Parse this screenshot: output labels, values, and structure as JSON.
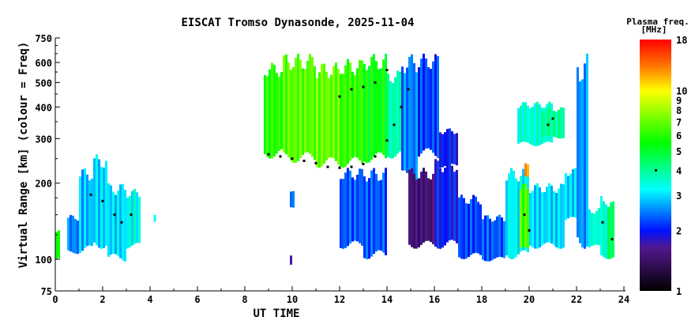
{
  "chart_data": {
    "type": "heatmap",
    "title": "EISCAT Tromso Dynasonde, 2025-11-04",
    "xlabel": "UT TIME",
    "ylabel": "Virtual Range [km] (colour = Freq)",
    "xlim": [
      0,
      24
    ],
    "ylim": [
      75,
      750
    ],
    "yscale": "log",
    "x_ticks": [
      "0",
      "2",
      "4",
      "6",
      "8",
      "10",
      "12",
      "14",
      "16",
      "18",
      "20",
      "22",
      "24"
    ],
    "y_ticks": [
      75,
      100,
      200,
      300,
      400,
      500,
      600,
      750
    ],
    "y_tick_labels": [
      "75",
      "100",
      "200",
      "300",
      "400",
      "500",
      "600",
      "750"
    ],
    "y_minor_ticks": [
      125,
      150,
      175,
      250,
      350,
      450,
      550,
      650,
      700
    ],
    "colorbar": {
      "label_line1": "Plasma freq.",
      "label_line2": "[MHz]",
      "range": [
        1,
        18
      ],
      "scale": "log",
      "ticks": [
        1,
        2,
        3,
        4,
        5,
        6,
        7,
        8,
        9,
        10,
        18
      ],
      "tick_labels": [
        "1",
        "2",
        "3",
        "4",
        "5",
        "6",
        "7",
        "8",
        "9",
        "10",
        "18"
      ],
      "stops": [
        {
          "v": 1.0,
          "color": "#000000"
        },
        {
          "v": 1.4,
          "color": "#3a1060"
        },
        {
          "v": 1.65,
          "color": "#501890"
        },
        {
          "v": 2.0,
          "color": "#0010ff"
        },
        {
          "v": 3.2,
          "color": "#00ffff"
        },
        {
          "v": 5.5,
          "color": "#00ff00"
        },
        {
          "v": 10.0,
          "color": "#ffff00"
        },
        {
          "v": 13.0,
          "color": "#ff8000"
        },
        {
          "v": 18.0,
          "color": "#ff0000"
        }
      ]
    },
    "regions": [
      {
        "t0": 0.0,
        "t1": 0.12,
        "r0": 100,
        "r1": 130,
        "f": 5.5
      },
      {
        "t0": 0.5,
        "t1": 1.0,
        "r0": 105,
        "r1": 150,
        "f": 2.5
      },
      {
        "t0": 1.0,
        "t1": 1.6,
        "r0": 105,
        "r1": 230,
        "f": 2.8
      },
      {
        "t0": 1.6,
        "t1": 2.2,
        "r0": 110,
        "r1": 260,
        "f": 3.0
      },
      {
        "t0": 2.2,
        "t1": 3.0,
        "r0": 98,
        "r1": 200,
        "f": 3.0
      },
      {
        "t0": 3.0,
        "t1": 3.6,
        "r0": 110,
        "r1": 190,
        "f": 3.3
      },
      {
        "t0": 4.15,
        "t1": 4.25,
        "r0": 140,
        "r1": 150,
        "f": 3.5
      },
      {
        "t0": 8.8,
        "t1": 9.6,
        "r0": 250,
        "r1": 600,
        "f": 6.0
      },
      {
        "t0": 9.6,
        "t1": 11.0,
        "r0": 240,
        "r1": 650,
        "f": 6.8
      },
      {
        "t0": 11.0,
        "t1": 12.0,
        "r0": 230,
        "r1": 600,
        "f": 7.0
      },
      {
        "t0": 12.0,
        "t1": 13.0,
        "r0": 230,
        "r1": 620,
        "f": 6.2
      },
      {
        "t0": 13.0,
        "t1": 14.0,
        "r0": 240,
        "r1": 650,
        "f": 5.5
      },
      {
        "t0": 14.0,
        "t1": 14.6,
        "r0": 250,
        "r1": 560,
        "f": 3.8
      },
      {
        "t0": 14.6,
        "t1": 15.3,
        "r0": 200,
        "r1": 650,
        "f": 2.5
      },
      {
        "t0": 15.3,
        "t1": 16.2,
        "r0": 250,
        "r1": 650,
        "f": 2.2
      },
      {
        "t0": 16.2,
        "t1": 17.0,
        "r0": 230,
        "r1": 330,
        "f": 2.0
      },
      {
        "t0": 9.9,
        "t1": 10.1,
        "r0": 160,
        "r1": 190,
        "f": 2.5
      },
      {
        "t0": 9.9,
        "t1": 10.0,
        "r0": 95,
        "r1": 105,
        "f": 1.8
      },
      {
        "t0": 12.0,
        "t1": 13.0,
        "r0": 110,
        "r1": 230,
        "f": 2.3
      },
      {
        "t0": 13.0,
        "t1": 14.0,
        "r0": 100,
        "r1": 230,
        "f": 2.3
      },
      {
        "t0": 14.9,
        "t1": 16.5,
        "r0": 110,
        "r1": 230,
        "f": 1.5
      },
      {
        "t0": 16.0,
        "t1": 17.0,
        "r0": 110,
        "r1": 250,
        "f": 2.0
      },
      {
        "t0": 17.0,
        "t1": 18.0,
        "r0": 100,
        "r1": 180,
        "f": 2.2
      },
      {
        "t0": 18.0,
        "t1": 19.0,
        "r0": 98,
        "r1": 150,
        "f": 2.3
      },
      {
        "t0": 19.0,
        "t1": 20.0,
        "r0": 100,
        "r1": 230,
        "f": 3.2
      },
      {
        "t0": 19.6,
        "t1": 20.0,
        "r0": 105,
        "r1": 200,
        "f": 6.5
      },
      {
        "t0": 19.8,
        "t1": 20.0,
        "r0": 210,
        "r1": 240,
        "f": 12.0
      },
      {
        "t0": 20.0,
        "t1": 21.5,
        "r0": 110,
        "r1": 200,
        "f": 3.0
      },
      {
        "t0": 19.5,
        "t1": 21.0,
        "r0": 280,
        "r1": 420,
        "f": 3.5
      },
      {
        "t0": 20.5,
        "t1": 21.5,
        "r0": 300,
        "r1": 400,
        "f": 4.0
      },
      {
        "t0": 21.5,
        "t1": 22.0,
        "r0": 140,
        "r1": 230,
        "f": 3.0
      },
      {
        "t0": 22.0,
        "t1": 22.5,
        "r0": 110,
        "r1": 650,
        "f": 2.6
      },
      {
        "t0": 22.5,
        "t1": 23.0,
        "r0": 110,
        "r1": 160,
        "f": 3.5
      },
      {
        "t0": 23.0,
        "t1": 23.3,
        "r0": 100,
        "r1": 180,
        "f": 3.5
      },
      {
        "t0": 23.3,
        "t1": 23.6,
        "r0": 100,
        "r1": 170,
        "f": 4.5
      }
    ],
    "traces": [
      {
        "t": 1.5,
        "r": 180
      },
      {
        "t": 2.0,
        "r": 170
      },
      {
        "t": 2.5,
        "r": 150
      },
      {
        "t": 2.8,
        "r": 140
      },
      {
        "t": 3.2,
        "r": 150
      },
      {
        "t": 9.0,
        "r": 260
      },
      {
        "t": 9.5,
        "r": 255
      },
      {
        "t": 10.0,
        "r": 250
      },
      {
        "t": 10.5,
        "r": 245
      },
      {
        "t": 11.0,
        "r": 240
      },
      {
        "t": 11.5,
        "r": 232
      },
      {
        "t": 12.0,
        "r": 230
      },
      {
        "t": 12.5,
        "r": 232
      },
      {
        "t": 13.0,
        "r": 238
      },
      {
        "t": 13.5,
        "r": 255
      },
      {
        "t": 14.0,
        "r": 295
      },
      {
        "t": 14.3,
        "r": 340
      },
      {
        "t": 14.6,
        "r": 400
      },
      {
        "t": 14.9,
        "r": 470
      },
      {
        "t": 12.0,
        "r": 440
      },
      {
        "t": 12.5,
        "r": 470
      },
      {
        "t": 13.0,
        "r": 480
      },
      {
        "t": 13.5,
        "r": 500
      },
      {
        "t": 14.0,
        "r": 560
      },
      {
        "t": 19.8,
        "r": 150
      },
      {
        "t": 20.0,
        "r": 130
      },
      {
        "t": 20.8,
        "r": 340
      },
      {
        "t": 21.0,
        "r": 360
      },
      {
        "t": 23.1,
        "r": 140
      },
      {
        "t": 23.5,
        "r": 120
      }
    ]
  }
}
